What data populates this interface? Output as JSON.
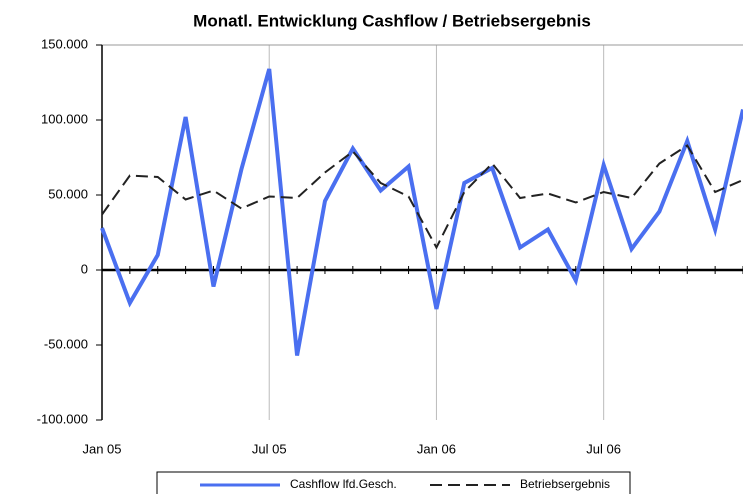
{
  "chart_data": {
    "type": "line",
    "title": "Monatl. Entwicklung Cashflow / Betriebsergebnis",
    "categories": [
      "Jan 05",
      null,
      null,
      null,
      null,
      null,
      "Jul 05",
      null,
      null,
      null,
      null,
      null,
      "Jan 06",
      null,
      null,
      null,
      null,
      null,
      "Jul 06",
      null,
      null,
      null,
      null,
      null
    ],
    "series": [
      {
        "name": "Cashflow lfd.Gesch.",
        "color": "#4a6ff0",
        "dash": "solid",
        "values": [
          28000,
          -22000,
          10000,
          102000,
          -11000,
          67000,
          134000,
          -57000,
          46000,
          81000,
          53000,
          69000,
          -26000,
          58000,
          68000,
          15000,
          27000,
          -7000,
          70000,
          14000,
          39000,
          86000,
          27000,
          107000
        ]
      },
      {
        "name": "Betriebsergebnis",
        "color": "#222222",
        "dash": "dashed",
        "values": [
          37000,
          63000,
          62000,
          47000,
          53000,
          41000,
          49000,
          48000,
          65000,
          79000,
          58000,
          49000,
          15000,
          52000,
          71000,
          48000,
          51000,
          45000,
          52000,
          48000,
          71000,
          83000,
          52000,
          60000
        ]
      }
    ],
    "ylim": [
      -100000,
      150000
    ],
    "yticks": [
      {
        "value": -100000,
        "label": "-100.000"
      },
      {
        "value": -50000,
        "label": "-50.000"
      },
      0,
      {
        "value": 50000,
        "label": "50.000"
      },
      {
        "value": 100000,
        "label": "100.000"
      },
      {
        "value": 150000,
        "label": "150.000"
      }
    ],
    "grid": true,
    "legend": "bottom"
  }
}
